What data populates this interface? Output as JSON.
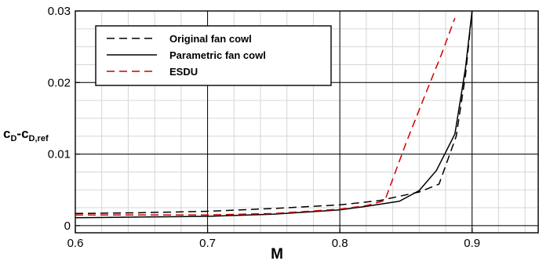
{
  "chart_data": {
    "type": "line",
    "title": "",
    "xlabel": "M",
    "ylabel_main": "c",
    "ylabel_sub1": "D",
    "ylabel_mid": "-c",
    "ylabel_sub2": "D,ref",
    "xlim": [
      0.6,
      0.95
    ],
    "ylim": [
      -0.001,
      0.03
    ],
    "x_ticks": [
      0.6,
      0.7,
      0.8,
      0.9
    ],
    "x_tick_labels": [
      "0.6",
      "0.7",
      "0.8",
      "0.9"
    ],
    "y_ticks": [
      0,
      0.01,
      0.02,
      0.03
    ],
    "y_tick_labels": [
      "0",
      "0.01",
      "0.02",
      "0.03"
    ],
    "grid": true,
    "legend_position": "top-left",
    "series": [
      {
        "name": "Original fan cowl",
        "color": "#000000",
        "dash": "dashed",
        "x": [
          0.6,
          0.65,
          0.7,
          0.75,
          0.8,
          0.83,
          0.86,
          0.875,
          0.888,
          0.895,
          0.9
        ],
        "y": [
          0.0017,
          0.0018,
          0.002,
          0.0024,
          0.0029,
          0.0035,
          0.0047,
          0.0058,
          0.0125,
          0.021,
          0.03
        ]
      },
      {
        "name": "Parametric fan cowl",
        "color": "#000000",
        "dash": "solid",
        "x": [
          0.6,
          0.65,
          0.7,
          0.75,
          0.8,
          0.82,
          0.845,
          0.86,
          0.873,
          0.887,
          0.895,
          0.9
        ],
        "y": [
          0.0011,
          0.0012,
          0.0013,
          0.0016,
          0.0022,
          0.0027,
          0.0034,
          0.0049,
          0.0077,
          0.0128,
          0.022,
          0.03
        ]
      },
      {
        "name": "ESDU",
        "color": "#cc0000",
        "dash": "dashed",
        "x": [
          0.6,
          0.65,
          0.7,
          0.75,
          0.8,
          0.82,
          0.834,
          0.85,
          0.865,
          0.877,
          0.887
        ],
        "y": [
          0.0015,
          0.0015,
          0.0015,
          0.0017,
          0.0023,
          0.0028,
          0.0035,
          0.0115,
          0.0185,
          0.024,
          0.029
        ]
      }
    ]
  }
}
